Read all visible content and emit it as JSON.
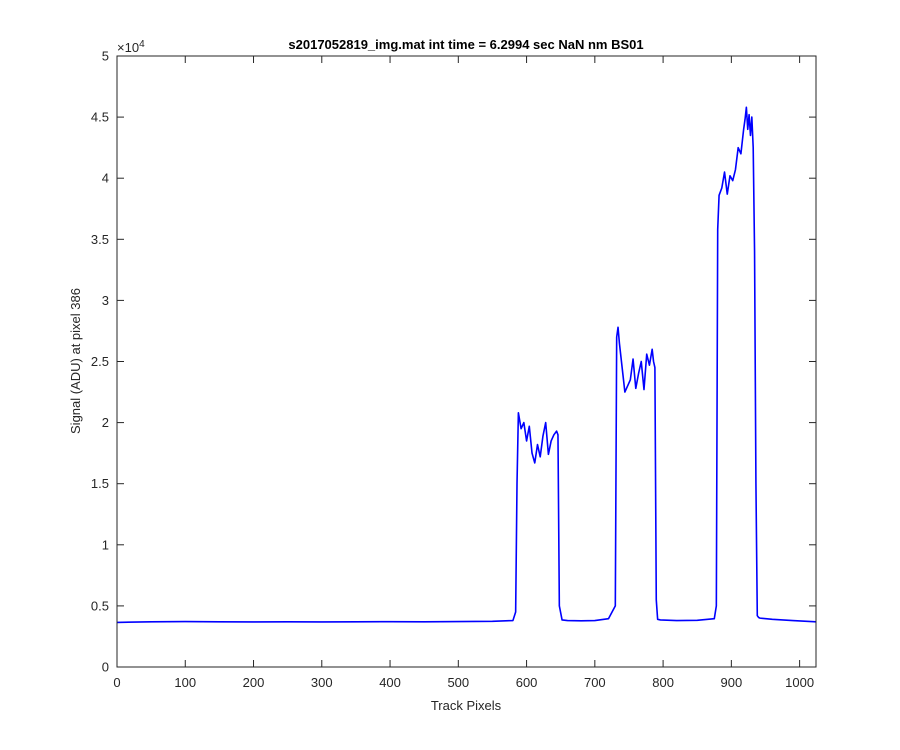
{
  "chart_data": {
    "type": "line",
    "title": "s2017052819_img.mat int time = 6.2994 sec  NaN nm BS01",
    "xlabel": "Track Pixels",
    "ylabel": "Signal (ADU) at pixel 386",
    "xlim": [
      0,
      1024
    ],
    "ylim": [
      0,
      50000
    ],
    "x_ticks": [
      0,
      100,
      200,
      300,
      400,
      500,
      600,
      700,
      800,
      900,
      1000
    ],
    "x_tick_labels": [
      "0",
      "100",
      "200",
      "300",
      "400",
      "500",
      "600",
      "700",
      "800",
      "900",
      "1000"
    ],
    "y_ticks": [
      0,
      5000,
      10000,
      15000,
      20000,
      25000,
      30000,
      35000,
      40000,
      45000,
      50000
    ],
    "y_tick_labels": [
      "0",
      "0.5",
      "1",
      "1.5",
      "2",
      "2.5",
      "3",
      "3.5",
      "4",
      "4.5",
      "5"
    ],
    "y_exponent_label": "×10",
    "y_exponent_power": "4",
    "grid": false,
    "line_color": "#0000ff",
    "series": [
      {
        "x": [
          0,
          50,
          100,
          150,
          200,
          250,
          300,
          350,
          400,
          450,
          500,
          550,
          580,
          584,
          586,
          588,
          592,
          596,
          600,
          604,
          608,
          612,
          616,
          620,
          624,
          628,
          632,
          636,
          640,
          644,
          646,
          648,
          652,
          660,
          680,
          700,
          720,
          730,
          732,
          734,
          736,
          740,
          744,
          748,
          752,
          756,
          760,
          764,
          768,
          772,
          776,
          780,
          784,
          786,
          788,
          790,
          792,
          796,
          820,
          850,
          875,
          878,
          880,
          882,
          886,
          890,
          894,
          898,
          902,
          906,
          910,
          914,
          918,
          920,
          922,
          924,
          926,
          928,
          930,
          932,
          934,
          936,
          938,
          940,
          942,
          960,
          990,
          1024
        ],
        "y": [
          3650,
          3700,
          3720,
          3700,
          3690,
          3700,
          3690,
          3700,
          3710,
          3700,
          3720,
          3740,
          3800,
          4500,
          15000,
          20800,
          19500,
          20000,
          18500,
          19700,
          17500,
          16700,
          18200,
          17200,
          18900,
          20000,
          17400,
          18500,
          19000,
          19300,
          19000,
          5000,
          3850,
          3800,
          3780,
          3800,
          3950,
          5000,
          27000,
          27800,
          26500,
          24500,
          22500,
          23000,
          23500,
          25200,
          22800,
          24000,
          25000,
          22700,
          25600,
          24700,
          26000,
          25000,
          24500,
          5500,
          3900,
          3850,
          3800,
          3820,
          3950,
          5000,
          35800,
          38600,
          39200,
          40500,
          38700,
          40200,
          39800,
          40700,
          42500,
          42000,
          44000,
          44800,
          45800,
          44000,
          45200,
          43500,
          45000,
          42500,
          34000,
          15000,
          4200,
          4050,
          4000,
          3900,
          3800,
          3700
        ]
      }
    ]
  }
}
